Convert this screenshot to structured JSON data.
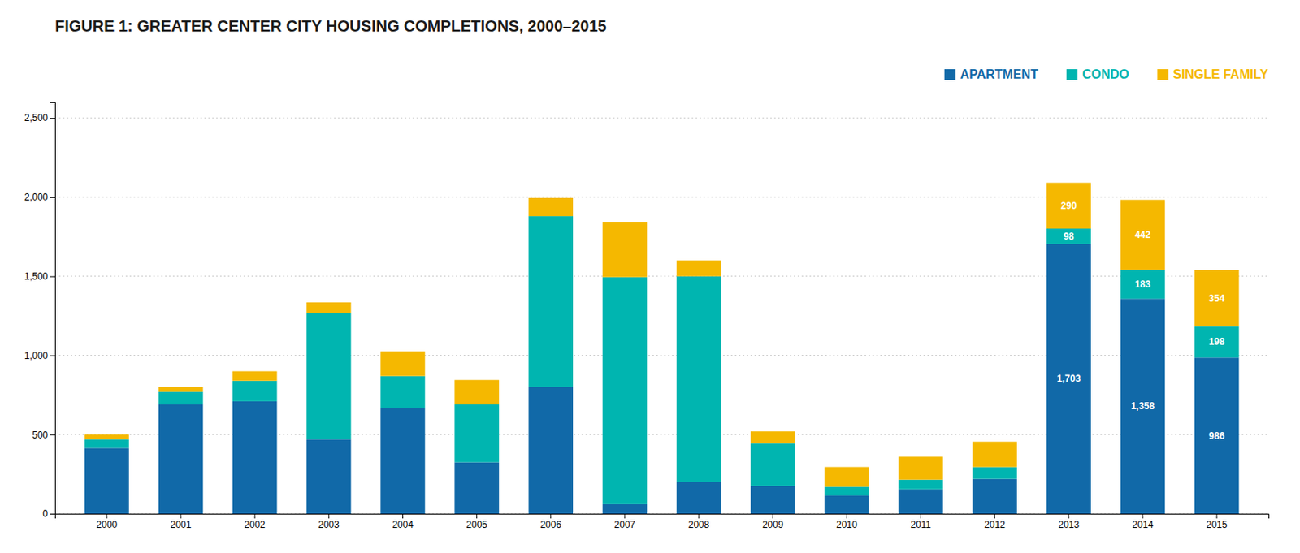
{
  "chart_data": {
    "type": "bar",
    "stacked": true,
    "title": "FIGURE 1: GREATER CENTER CITY HOUSING COMPLETIONS, 2000–2015",
    "categories": [
      "2000",
      "2001",
      "2002",
      "2003",
      "2004",
      "2005",
      "2006",
      "2007",
      "2008",
      "2009",
      "2010",
      "2011",
      "2012",
      "2013",
      "2014",
      "2015"
    ],
    "series": [
      {
        "name": "APARTMENT",
        "color": "#1169a8",
        "values": [
          415,
          690,
          710,
          470,
          665,
          325,
          800,
          60,
          200,
          175,
          115,
          155,
          220,
          1703,
          1358,
          986
        ],
        "value_labels": [
          null,
          null,
          null,
          null,
          null,
          null,
          null,
          null,
          null,
          null,
          null,
          null,
          null,
          "1,703",
          "1,358",
          "986"
        ]
      },
      {
        "name": "CONDO",
        "color": "#00b5b0",
        "values": [
          55,
          80,
          130,
          800,
          205,
          365,
          1080,
          1435,
          1300,
          270,
          55,
          60,
          75,
          98,
          183,
          198
        ],
        "value_labels": [
          null,
          null,
          null,
          null,
          null,
          null,
          null,
          null,
          null,
          null,
          null,
          null,
          null,
          "98",
          "183",
          "198"
        ]
      },
      {
        "name": "SINGLE FAMILY",
        "color": "#f5b800",
        "values": [
          30,
          30,
          60,
          65,
          155,
          155,
          115,
          345,
          100,
          75,
          125,
          145,
          160,
          290,
          442,
          354
        ],
        "value_labels": [
          null,
          null,
          null,
          null,
          null,
          null,
          null,
          null,
          null,
          null,
          null,
          null,
          null,
          "290",
          "442",
          "354"
        ]
      }
    ],
    "ylim": [
      0,
      2600
    ],
    "yticks": [
      0,
      500,
      {
        "value": 1000,
        "label": "1,000"
      },
      {
        "value": 1500,
        "label": "1,500"
      },
      {
        "value": 2000,
        "label": "2,000"
      },
      {
        "value": 2500,
        "label": "2,500"
      }
    ],
    "grid": true,
    "legend": "top-right",
    "data_labels": true
  }
}
